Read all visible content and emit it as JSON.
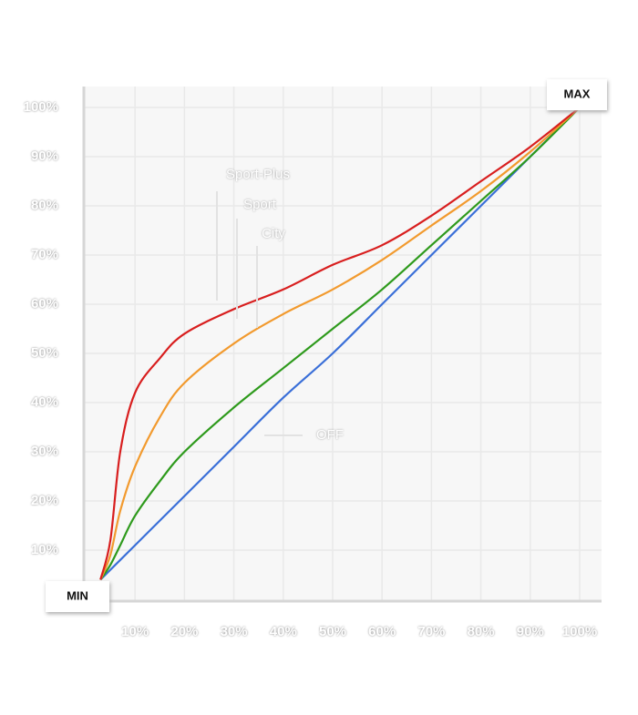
{
  "chart_data": {
    "type": "line",
    "x": [
      3,
      5,
      7,
      10,
      15,
      20,
      30,
      40,
      50,
      60,
      70,
      80,
      90,
      100
    ],
    "series": [
      {
        "name": "OFF",
        "color": "#3a6fd8",
        "values": [
          4,
          6,
          8,
          11,
          16,
          21,
          31,
          41,
          50,
          60,
          70,
          80,
          90,
          100
        ]
      },
      {
        "name": "City",
        "color": "#2e9a1c",
        "values": [
          4,
          7,
          11,
          17,
          24,
          30,
          39,
          47,
          55,
          63,
          72,
          81,
          90,
          100
        ]
      },
      {
        "name": "Sport",
        "color": "#f29a2e",
        "values": [
          4,
          9,
          18,
          27,
          37,
          44,
          52,
          58,
          63,
          69,
          76,
          83,
          91,
          100
        ]
      },
      {
        "name": "Sport-Plus",
        "color": "#d81e1e",
        "values": [
          4,
          12,
          30,
          42,
          49,
          54,
          59,
          63,
          68,
          72,
          78,
          85,
          92,
          100
        ]
      }
    ],
    "xlim": [
      0,
      100
    ],
    "ylim": [
      0,
      100
    ],
    "xticks": [
      {
        "value": 10,
        "label": "10%"
      },
      {
        "value": 20,
        "label": "20%"
      },
      {
        "value": 30,
        "label": "30%"
      },
      {
        "value": 40,
        "label": "40%"
      },
      {
        "value": 50,
        "label": "50%"
      },
      {
        "value": 60,
        "label": "60%"
      },
      {
        "value": 70,
        "label": "70%"
      },
      {
        "value": 80,
        "label": "80%"
      },
      {
        "value": 90,
        "label": "90%"
      },
      {
        "value": 100,
        "label": "100%"
      }
    ],
    "yticks": [
      {
        "value": 10,
        "label": "10%"
      },
      {
        "value": 20,
        "label": "20%"
      },
      {
        "value": 30,
        "label": "30%"
      },
      {
        "value": 40,
        "label": "40%"
      },
      {
        "value": 50,
        "label": "50%"
      },
      {
        "value": 60,
        "label": "60%"
      },
      {
        "value": 70,
        "label": "70%"
      },
      {
        "value": 80,
        "label": "80%"
      },
      {
        "value": 90,
        "label": "90%"
      },
      {
        "value": 100,
        "label": "100%"
      }
    ],
    "grid": true,
    "min_label": "MIN",
    "max_label": "MAX"
  }
}
